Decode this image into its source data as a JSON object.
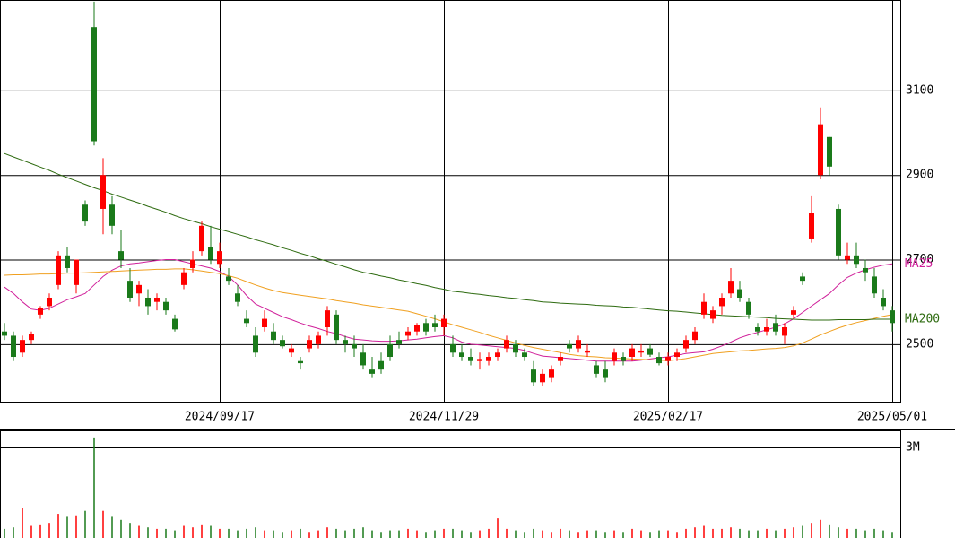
{
  "chart_data": [
    {
      "type": "candlestick",
      "categories": [
        null,
        null,
        null,
        null,
        null,
        null,
        null,
        null,
        null,
        null,
        null,
        null,
        null,
        null,
        null,
        null,
        null,
        null,
        null,
        null,
        null,
        null,
        null,
        null,
        "2024/09/17",
        null,
        null,
        null,
        null,
        null,
        null,
        null,
        null,
        null,
        null,
        null,
        null,
        null,
        null,
        null,
        null,
        null,
        null,
        null,
        null,
        null,
        null,
        null,
        null,
        "2024/11/29",
        null,
        null,
        null,
        null,
        null,
        null,
        null,
        null,
        null,
        null,
        null,
        null,
        null,
        null,
        null,
        null,
        null,
        null,
        null,
        null,
        null,
        null,
        null,
        null,
        "2025/02/17",
        null,
        null,
        null,
        null,
        null,
        null,
        null,
        null,
        null,
        null,
        null,
        null,
        null,
        null,
        null,
        null,
        null,
        null,
        null,
        null,
        null,
        null,
        null,
        null,
        "2025/05/01"
      ],
      "open": [
        2530,
        2520,
        2480,
        2510,
        2570,
        2590,
        2640,
        2710,
        2640,
        2830,
        3250,
        2820,
        2830,
        2720,
        2650,
        2620,
        2610,
        2600,
        2600,
        2560,
        2640,
        2680,
        2720,
        2730,
        2690,
        2660,
        2620,
        2560,
        2520,
        2540,
        2530,
        2510,
        2480,
        2460,
        2490,
        2500,
        2540,
        2570,
        2510,
        2500,
        2480,
        2440,
        2460,
        2500,
        2510,
        2520,
        2530,
        2550,
        2550,
        2540,
        2500,
        2480,
        2470,
        2460,
        2460,
        2470,
        2490,
        2500,
        2480,
        2440,
        2410,
        2420,
        2460,
        2500,
        2490,
        2480,
        2450,
        2440,
        2460,
        2470,
        2470,
        2480,
        2490,
        2470,
        2460,
        2470,
        2490,
        2510,
        2570,
        2560,
        2590,
        2620,
        2630,
        2600,
        2540,
        2530,
        2550,
        2520,
        2570,
        2660,
        2750,
        2900,
        2990,
        2820,
        2700,
        2710,
        2680,
        2660,
        2610,
        2580
      ],
      "high": [
        2550,
        2530,
        2520,
        2530,
        2590,
        2620,
        2720,
        2730,
        2700,
        2840,
        3310,
        2940,
        2850,
        2770,
        2680,
        2650,
        2630,
        2620,
        2610,
        2570,
        2680,
        2720,
        2790,
        2780,
        2740,
        2680,
        2640,
        2580,
        2540,
        2580,
        2550,
        2520,
        2500,
        2470,
        2520,
        2530,
        2590,
        2580,
        2520,
        2520,
        2500,
        2470,
        2480,
        2520,
        2530,
        2540,
        2550,
        2560,
        2570,
        2570,
        2520,
        2500,
        2490,
        2480,
        2480,
        2490,
        2520,
        2510,
        2490,
        2460,
        2440,
        2450,
        2480,
        2510,
        2520,
        2500,
        2460,
        2460,
        2490,
        2480,
        2500,
        2500,
        2500,
        2480,
        2480,
        2490,
        2520,
        2540,
        2620,
        2590,
        2620,
        2680,
        2650,
        2610,
        2550,
        2560,
        2570,
        2550,
        2590,
        2670,
        2850,
        3060,
        2990,
        2830,
        2740,
        2740,
        2700,
        2680,
        2630,
        2590
      ],
      "low": [
        2510,
        2460,
        2470,
        2500,
        2560,
        2580,
        2630,
        2670,
        2620,
        2780,
        2970,
        2760,
        2760,
        2680,
        2600,
        2590,
        2570,
        2580,
        2570,
        2530,
        2630,
        2670,
        2710,
        2690,
        2680,
        2640,
        2590,
        2540,
        2470,
        2530,
        2500,
        2490,
        2470,
        2440,
        2480,
        2490,
        2520,
        2500,
        2480,
        2470,
        2440,
        2420,
        2430,
        2460,
        2490,
        2510,
        2520,
        2520,
        2530,
        2520,
        2470,
        2460,
        2450,
        2440,
        2450,
        2460,
        2480,
        2470,
        2460,
        2400,
        2400,
        2410,
        2450,
        2480,
        2480,
        2470,
        2420,
        2410,
        2450,
        2450,
        2460,
        2470,
        2470,
        2450,
        2450,
        2460,
        2480,
        2500,
        2560,
        2550,
        2570,
        2610,
        2600,
        2560,
        2520,
        2520,
        2520,
        2500,
        2560,
        2640,
        2740,
        2890,
        2900,
        2700,
        2690,
        2680,
        2650,
        2610,
        2580,
        2530
      ],
      "close": [
        2520,
        2470,
        2510,
        2525,
        2585,
        2610,
        2710,
        2680,
        2700,
        2790,
        2980,
        2900,
        2780,
        2700,
        2610,
        2640,
        2590,
        2610,
        2580,
        2535,
        2670,
        2700,
        2780,
        2700,
        2720,
        2650,
        2600,
        2550,
        2480,
        2560,
        2510,
        2495,
        2490,
        2455,
        2510,
        2520,
        2580,
        2510,
        2500,
        2490,
        2450,
        2430,
        2440,
        2470,
        2500,
        2530,
        2545,
        2530,
        2540,
        2560,
        2480,
        2470,
        2460,
        2465,
        2470,
        2480,
        2510,
        2480,
        2470,
        2410,
        2430,
        2440,
        2470,
        2490,
        2510,
        2485,
        2430,
        2420,
        2480,
        2460,
        2490,
        2485,
        2475,
        2455,
        2470,
        2480,
        2510,
        2530,
        2600,
        2580,
        2610,
        2650,
        2610,
        2570,
        2530,
        2540,
        2530,
        2540,
        2580,
        2650,
        2810,
        3020,
        2920,
        2710,
        2710,
        2690,
        2670,
        2620,
        2590,
        2550
      ],
      "up_color": "#ff0000",
      "down_color": "#1a7a1a",
      "series": [
        {
          "name": "MA25",
          "color": "#d0209a",
          "values": [
            2635,
            2620,
            2600,
            2583,
            2580,
            2585,
            2595,
            2605,
            2612,
            2620,
            2640,
            2660,
            2675,
            2685,
            2690,
            2692,
            2695,
            2698,
            2700,
            2700,
            2695,
            2690,
            2685,
            2680,
            2672,
            2660,
            2640,
            2615,
            2595,
            2585,
            2575,
            2565,
            2558,
            2550,
            2543,
            2537,
            2530,
            2525,
            2518,
            2512,
            2510,
            2508,
            2507,
            2507,
            2508,
            2510,
            2512,
            2515,
            2518,
            2520,
            2515,
            2505,
            2500,
            2498,
            2496,
            2494,
            2492,
            2490,
            2485,
            2478,
            2472,
            2470,
            2468,
            2466,
            2464,
            2462,
            2460,
            2460,
            2460,
            2460,
            2460,
            2462,
            2465,
            2468,
            2470,
            2474,
            2478,
            2480,
            2482,
            2488,
            2496,
            2505,
            2515,
            2522,
            2528,
            2534,
            2540,
            2548,
            2560,
            2575,
            2590,
            2605,
            2620,
            2640,
            2658,
            2668,
            2676,
            2682,
            2687,
            2690
          ]
        },
        {
          "color": "#f0a020",
          "values": [
            2663,
            2664,
            2664,
            2665,
            2666,
            2666,
            2667,
            2668,
            2668,
            2669,
            2670,
            2671,
            2672,
            2673,
            2674,
            2675,
            2676,
            2677,
            2677,
            2678,
            2678,
            2676,
            2673,
            2670,
            2667,
            2662,
            2656,
            2648,
            2640,
            2633,
            2627,
            2622,
            2619,
            2616,
            2613,
            2610,
            2607,
            2603,
            2600,
            2597,
            2593,
            2590,
            2587,
            2584,
            2581,
            2578,
            2572,
            2566,
            2560,
            2553,
            2546,
            2540,
            2534,
            2528,
            2521,
            2515,
            2509,
            2503,
            2497,
            2492,
            2488,
            2484,
            2480,
            2476,
            2473,
            2471,
            2470,
            2468,
            2467,
            2466,
            2465,
            2464,
            2463,
            2462,
            2461,
            2463,
            2466,
            2470,
            2474,
            2478,
            2480,
            2482,
            2484,
            2485,
            2487,
            2489,
            2490,
            2492,
            2496,
            2503,
            2512,
            2522,
            2530,
            2538,
            2545,
            2551,
            2556,
            2561,
            2566,
            2570
          ]
        },
        {
          "name": "MA200",
          "color": "#2e6b10",
          "values": [
            2951,
            2943,
            2935,
            2927,
            2919,
            2911,
            2902,
            2894,
            2886,
            2878,
            2870,
            2863,
            2855,
            2848,
            2841,
            2834,
            2826,
            2819,
            2812,
            2804,
            2797,
            2791,
            2785,
            2778,
            2772,
            2766,
            2760,
            2754,
            2747,
            2741,
            2735,
            2728,
            2722,
            2715,
            2709,
            2702,
            2696,
            2689,
            2683,
            2676,
            2670,
            2666,
            2661,
            2657,
            2652,
            2648,
            2643,
            2639,
            2634,
            2630,
            2625,
            2623,
            2620,
            2618,
            2615,
            2613,
            2610,
            2608,
            2605,
            2603,
            2600,
            2599,
            2597,
            2596,
            2595,
            2594,
            2592,
            2591,
            2590,
            2588,
            2587,
            2585,
            2583,
            2581,
            2579,
            2578,
            2576,
            2574,
            2572,
            2570,
            2568,
            2567,
            2566,
            2565,
            2564,
            2563,
            2561,
            2560,
            2559,
            2558,
            2557,
            2557,
            2557,
            2558,
            2558,
            2558,
            2558,
            2559,
            2559,
            2559
          ]
        }
      ],
      "ylim": [
        2364,
        3314
      ],
      "yticks": [
        2500,
        2700,
        2900,
        3100
      ],
      "grid": true
    },
    {
      "type": "bar",
      "values": [
        300000,
        350000,
        1000000,
        400000,
        450000,
        500000,
        800000,
        700000,
        750000,
        900000,
        3330000,
        900000,
        700000,
        600000,
        500000,
        400000,
        350000,
        300000,
        300000,
        250000,
        400000,
        350000,
        450000,
        400000,
        300000,
        300000,
        250000,
        300000,
        350000,
        250000,
        250000,
        200000,
        250000,
        300000,
        200000,
        250000,
        350000,
        300000,
        250000,
        300000,
        350000,
        250000,
        200000,
        250000,
        250000,
        300000,
        250000,
        200000,
        250000,
        300000,
        300000,
        250000,
        200000,
        250000,
        300000,
        650000,
        300000,
        250000,
        200000,
        300000,
        250000,
        200000,
        300000,
        250000,
        200000,
        250000,
        250000,
        200000,
        250000,
        200000,
        300000,
        250000,
        200000,
        250000,
        250000,
        200000,
        300000,
        350000,
        400000,
        300000,
        300000,
        350000,
        300000,
        250000,
        250000,
        300000,
        250000,
        300000,
        350000,
        400000,
        500000,
        600000,
        450000,
        350000,
        300000,
        300000,
        250000,
        300000,
        250000,
        200000
      ],
      "ylim": [
        0,
        3564000
      ],
      "yticks": [
        {
          "value": 3000000,
          "label": "3M"
        }
      ]
    }
  ]
}
